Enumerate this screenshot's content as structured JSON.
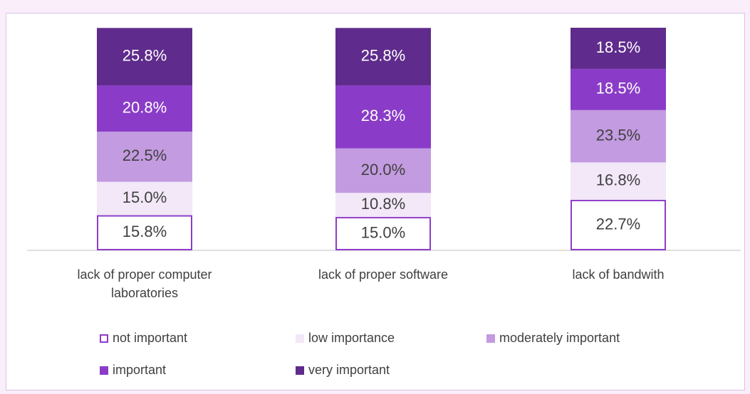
{
  "chart_data": {
    "type": "stacked-bar",
    "categories": [
      "lack of proper computer laboratories",
      "lack of proper software",
      "lack of bandwith"
    ],
    "series": [
      {
        "name": "not important",
        "color": "#ffffff",
        "border": "#8e3cc8",
        "values": [
          15.8,
          15.0,
          22.7
        ],
        "value_labels": [
          "15.8%",
          "15.0%",
          "22.7%"
        ]
      },
      {
        "name": "low importance",
        "color": "#f2e8f8",
        "values": [
          15.0,
          10.8,
          16.8
        ],
        "value_labels": [
          "15.0%",
          "10.8%",
          "16.8%"
        ]
      },
      {
        "name": "moderately important",
        "color": "#c39be0",
        "values": [
          22.5,
          20.0,
          23.5
        ],
        "value_labels": [
          "22.5%",
          "20.0%",
          "23.5%"
        ]
      },
      {
        "name": "important",
        "color": "#8a3cc8",
        "values": [
          20.8,
          28.3,
          18.5
        ],
        "value_labels": [
          "20.8%",
          "28.3%",
          "18.5%"
        ]
      },
      {
        "name": "very important",
        "color": "#5f2b8c",
        "values": [
          25.8,
          25.8,
          18.5
        ],
        "value_labels": [
          "25.8%",
          "25.8%",
          "18.5%"
        ]
      }
    ]
  }
}
